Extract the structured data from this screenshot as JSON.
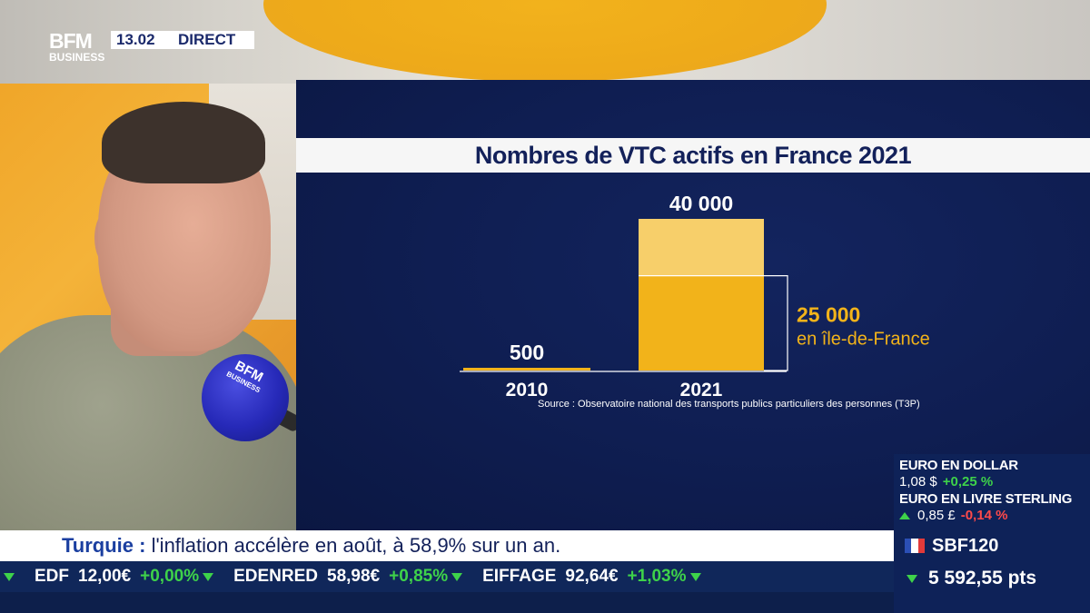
{
  "broadcast": {
    "logo_top": "BFM",
    "logo_bottom": "BUSINESS",
    "clock": "13.02",
    "live_label": "DIRECT"
  },
  "microphone": {
    "logo_top": "BFM",
    "logo_bottom": "BUSINESS"
  },
  "chart_data": {
    "type": "bar",
    "title": "Nombres de VTC actifs en France 2021",
    "categories": [
      "2010",
      "2021"
    ],
    "values": [
      500,
      40000
    ],
    "value_labels": [
      "500",
      "40 000"
    ],
    "sub_segment": {
      "category": "2021",
      "value": 25000,
      "label": "25 000",
      "description": "en île-de-France"
    },
    "colors": {
      "bar_2010": "#f2b31a",
      "bar_2021_total": "#f7cf6a",
      "bar_2021_idf": "#f2b31a"
    },
    "xlabel": "",
    "ylabel": "",
    "source": "Source : Observatoire national des transports publics particuliers des personnes (T3P)"
  },
  "headline": {
    "topic": "Turquie :",
    "text": "l'inflation accélère en août, à 58,9% sur un an."
  },
  "ticker": {
    "items": [
      {
        "name": "EDF",
        "price": "12,00€",
        "change": "+0,00%"
      },
      {
        "name": "EDENRED",
        "price": "58,98€",
        "change": "+0,85%"
      },
      {
        "name": "EIFFAGE",
        "price": "92,64€",
        "change": "+1,03%"
      }
    ]
  },
  "fx": {
    "pair1_label": "EURO EN DOLLAR",
    "pair1_value": "1,08 $",
    "pair1_change": "+0,25 %",
    "pair2_label": "EURO EN LIVRE STERLING",
    "pair2_value": "0,85 £",
    "pair2_change": "-0,14 %",
    "index_name": "SBF120",
    "index_value": "5 592,55 pts",
    "colors": {
      "up": "#3ed24a",
      "down": "#ff4a4a"
    }
  }
}
